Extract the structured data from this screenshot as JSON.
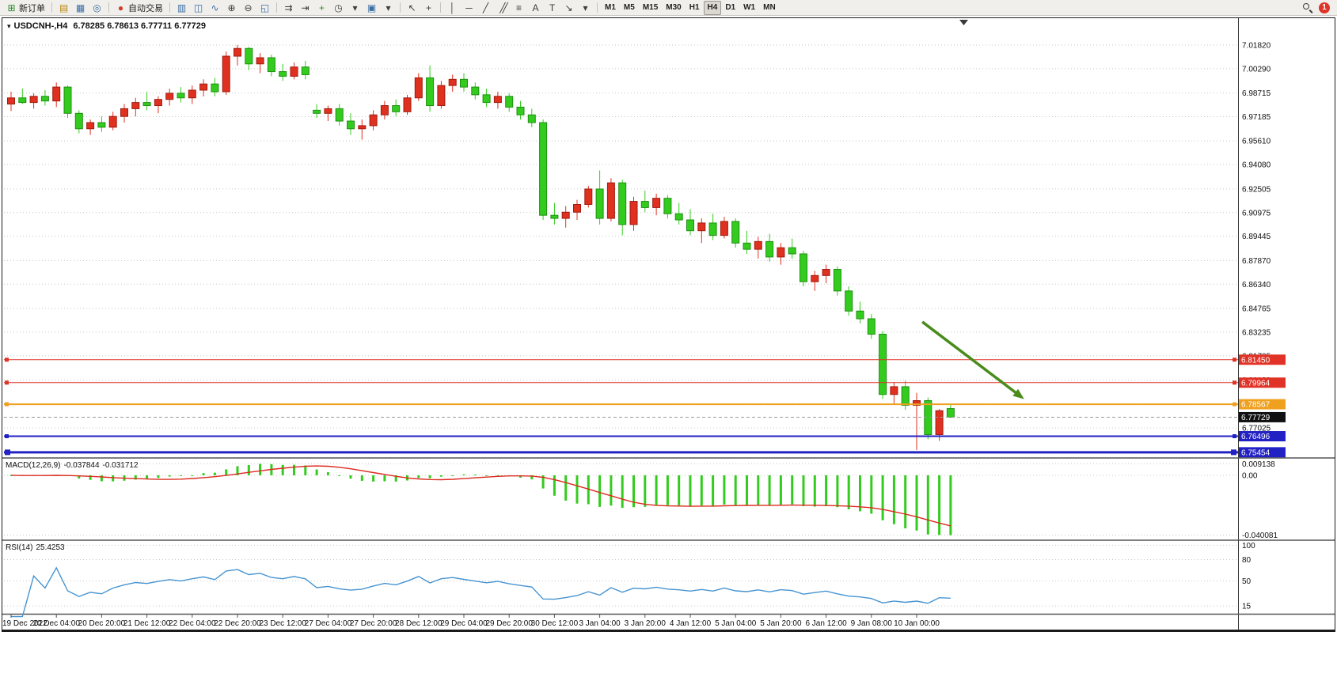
{
  "toolbar": {
    "notification_count": "1",
    "active_timeframe": "H4",
    "items": [
      {
        "name": "new-order-button",
        "icon": "new-order-icon",
        "glyph": "⊞",
        "color": "#2e8b2e",
        "label": "新订单"
      },
      {
        "type": "sep"
      },
      {
        "name": "market-watch-button",
        "icon": "market-watch-icon",
        "glyph": "▤",
        "color": "#b8860b"
      },
      {
        "name": "data-window-button",
        "icon": "data-window-icon",
        "glyph": "▦",
        "color": "#3a6ea5"
      },
      {
        "name": "navigator-button",
        "icon": "navigator-icon",
        "glyph": "◎",
        "color": "#3a6ea5"
      },
      {
        "type": "sep"
      },
      {
        "name": "algo-trading-button",
        "icon": "algo-trading-icon",
        "glyph": "●",
        "color": "#d43c2a",
        "label": "自动交易"
      },
      {
        "type": "sep"
      },
      {
        "name": "bar-chart-button",
        "icon": "bar-chart-icon",
        "glyph": "▥",
        "color": "#3a6ea5"
      },
      {
        "name": "candlestick-chart-button",
        "icon": "candlestick-chart-icon",
        "glyph": "◫",
        "color": "#3a6ea5"
      },
      {
        "name": "line-chart-button",
        "icon": "line-chart-icon",
        "glyph": "∿",
        "color": "#3a6ea5"
      },
      {
        "name": "zoom-in-button",
        "icon": "zoom-in-icon",
        "glyph": "⊕",
        "color": "#3d3d3d"
      },
      {
        "name": "zoom-out-button",
        "icon": "zoom-out-icon",
        "glyph": "⊖",
        "color": "#3d3d3d"
      },
      {
        "name": "tile-windows-button",
        "icon": "tile-windows-icon",
        "glyph": "◱",
        "color": "#3a6ea5"
      },
      {
        "type": "sep"
      },
      {
        "name": "auto-scroll-button",
        "icon": "auto-scroll-icon",
        "glyph": "⇉",
        "color": "#3d3d3d"
      },
      {
        "name": "chart-shift-button",
        "icon": "chart-shift-icon",
        "glyph": "⇥",
        "color": "#3d3d3d"
      },
      {
        "name": "indicators-button",
        "icon": "indicators-icon",
        "glyph": "+",
        "color": "#2e8b2e"
      },
      {
        "name": "periods-button",
        "icon": "clock-icon",
        "glyph": "◷",
        "color": "#3d3d3d"
      },
      {
        "name": "periods-dropdown",
        "icon": "chevron-down-icon",
        "glyph": "▾",
        "color": "#3d3d3d"
      },
      {
        "name": "templates-button",
        "icon": "templates-icon",
        "glyph": "▣",
        "color": "#3a6ea5"
      },
      {
        "name": "templates-dropdown",
        "icon": "chevron-down-icon",
        "glyph": "▾",
        "color": "#3d3d3d"
      },
      {
        "type": "sep"
      },
      {
        "name": "cursor-button",
        "icon": "cursor-icon",
        "glyph": "↖",
        "color": "#3d3d3d"
      },
      {
        "name": "crosshair-button",
        "icon": "crosshair-icon",
        "glyph": "+",
        "color": "#3d3d3d"
      },
      {
        "type": "sep"
      },
      {
        "name": "vertical-line-button",
        "icon": "vertical-line-icon",
        "glyph": "│",
        "color": "#3d3d3d"
      },
      {
        "name": "horizontal-line-button",
        "icon": "horizontal-line-icon",
        "glyph": "─",
        "color": "#3d3d3d"
      },
      {
        "name": "trendline-button",
        "icon": "trendline-icon",
        "glyph": "╱",
        "color": "#3d3d3d"
      },
      {
        "name": "channel-button",
        "icon": "channel-icon",
        "glyph": "╱╱",
        "color": "#3d3d3d"
      },
      {
        "name": "fibonacci-button",
        "icon": "fibonacci-icon",
        "glyph": "≡",
        "color": "#3d3d3d"
      },
      {
        "name": "text-tool-button",
        "icon": "text-tool-icon",
        "glyph": "A",
        "color": "#3d3d3d"
      },
      {
        "name": "label-tool-button",
        "icon": "label-tool-icon",
        "glyph": "T",
        "color": "#3d3d3d"
      },
      {
        "name": "arrows-tool-button",
        "icon": "arrow-tool-icon",
        "glyph": "↘",
        "color": "#3d3d3d"
      },
      {
        "name": "shapes-dropdown",
        "icon": "chevron-down-icon",
        "glyph": "▾",
        "color": "#3d3d3d"
      },
      {
        "type": "sep"
      },
      {
        "type": "tf",
        "name": "timeframe-m1-button",
        "label": "M1"
      },
      {
        "type": "tf",
        "name": "timeframe-m5-button",
        "label": "M5"
      },
      {
        "type": "tf",
        "name": "timeframe-m15-button",
        "label": "M15"
      },
      {
        "type": "tf",
        "name": "timeframe-m30-button",
        "label": "M30"
      },
      {
        "type": "tf",
        "name": "timeframe-h1-button",
        "label": "H1"
      },
      {
        "type": "tf",
        "name": "timeframe-h4-button",
        "label": "H4"
      },
      {
        "type": "tf",
        "name": "timeframe-d1-button",
        "label": "D1"
      },
      {
        "type": "tf",
        "name": "timeframe-w1-button",
        "label": "W1"
      },
      {
        "type": "tf",
        "name": "timeframe-mn-button",
        "label": "MN"
      }
    ]
  },
  "chart": {
    "symbol_period": "USDCNH-,H4",
    "ohlc": "6.78285 6.78613 6.77711 6.77729",
    "caret": "▾"
  },
  "macd": {
    "label": "MACD(12,26,9)",
    "value_main": "-0.037844",
    "value_signal": "-0.031712",
    "axis_max": "0.009138",
    "axis_zero": "0.00",
    "axis_min": "-0.040081"
  },
  "rsi": {
    "label": "RSI(14)",
    "value": "25.4253",
    "levels": [
      100,
      80,
      50,
      15
    ]
  },
  "chart_data": {
    "type": "candlestick",
    "symbol": "USDCNH-",
    "period": "H4",
    "bull_color": "#e0301f",
    "bull_stroke": "#9e1c10",
    "bear_color": "#33cc1e",
    "bear_stroke": "#1f8f12",
    "grid_color": "#c6c6c6",
    "macd_bar_color": "#33cc1e",
    "macd_signal_color": "#dd2a1e",
    "rsi_line_color": "#4694d1",
    "y_axis": {
      "price_top": 7.0361,
      "price_bottom": 6.7514,
      "labels": [
        7.0182,
        7.0029,
        6.98715,
        6.97185,
        6.9561,
        6.9408,
        6.92505,
        6.90975,
        6.89445,
        6.8787,
        6.8634,
        6.84765,
        6.83235,
        6.81705,
        6.8013,
        6.786,
        6.77025,
        6.75495
      ]
    },
    "x_label_every": 4,
    "x_labels": [
      "19 Dec 2022",
      "20 Dec 04:00",
      "20 Dec 20:00",
      "21 Dec 12:00",
      "22 Dec 04:00",
      "22 Dec 20:00",
      "23 Dec 12:00",
      "27 Dec 04:00",
      "27 Dec 20:00",
      "28 Dec 12:00",
      "29 Dec 04:00",
      "29 Dec 20:00",
      "30 Dec 12:00",
      "3 Jan 04:00",
      "3 Jan 20:00",
      "4 Jan 12:00",
      "5 Jan 04:00",
      "5 Jan 20:00",
      "6 Jan 12:00",
      "9 Jan 08:00",
      "10 Jan 00:00"
    ],
    "candles": [
      [
        6.98,
        6.988,
        6.9755,
        6.984
      ],
      [
        6.984,
        6.99,
        6.98,
        6.981
      ],
      [
        6.981,
        6.987,
        6.977,
        6.985
      ],
      [
        6.985,
        6.989,
        6.979,
        6.982
      ],
      [
        6.982,
        6.994,
        6.978,
        6.991
      ],
      [
        6.991,
        6.992,
        6.971,
        6.974
      ],
      [
        6.974,
        6.976,
        6.961,
        6.964
      ],
      [
        6.964,
        6.97,
        6.96,
        6.968
      ],
      [
        6.968,
        6.972,
        6.962,
        6.965
      ],
      [
        6.965,
        6.975,
        6.963,
        6.972
      ],
      [
        6.972,
        6.98,
        6.968,
        6.977
      ],
      [
        6.977,
        6.984,
        6.972,
        6.981
      ],
      [
        6.981,
        6.988,
        6.976,
        6.979
      ],
      [
        6.979,
        6.985,
        6.974,
        6.983
      ],
      [
        6.983,
        6.99,
        6.979,
        6.987
      ],
      [
        6.987,
        6.991,
        6.981,
        6.984
      ],
      [
        6.984,
        6.992,
        6.98,
        6.989
      ],
      [
        6.989,
        6.996,
        6.985,
        6.993
      ],
      [
        6.993,
        6.997,
        6.985,
        6.988
      ],
      [
        6.988,
        7.014,
        6.986,
        7.011
      ],
      [
        7.011,
        7.0182,
        7.005,
        7.016
      ],
      [
        7.016,
        7.017,
        7.002,
        7.006
      ],
      [
        7.006,
        7.013,
        7.0,
        7.01
      ],
      [
        7.01,
        7.012,
        6.998,
        7.001
      ],
      [
        7.001,
        7.006,
        6.995,
        6.998
      ],
      [
        6.998,
        7.007,
        6.996,
        7.004
      ],
      [
        7.004,
        7.008,
        6.996,
        6.999
      ],
      [
        6.976,
        6.98,
        6.971,
        6.974
      ],
      [
        6.974,
        6.979,
        6.969,
        6.977
      ],
      [
        6.977,
        6.98,
        6.966,
        6.969
      ],
      [
        6.969,
        6.974,
        6.96,
        6.964
      ],
      [
        6.964,
        6.97,
        6.957,
        6.966
      ],
      [
        6.966,
        6.976,
        6.963,
        6.973
      ],
      [
        6.973,
        6.982,
        6.97,
        6.979
      ],
      [
        6.979,
        6.983,
        6.972,
        6.975
      ],
      [
        6.975,
        6.986,
        6.973,
        6.984
      ],
      [
        6.984,
        7.0,
        6.982,
        6.997
      ],
      [
        6.997,
        7.005,
        6.975,
        6.979
      ],
      [
        6.979,
        6.995,
        6.977,
        6.992
      ],
      [
        6.992,
        6.999,
        6.988,
        6.996
      ],
      [
        6.996,
        7.0,
        6.988,
        6.991
      ],
      [
        6.991,
        6.994,
        6.983,
        6.986
      ],
      [
        6.986,
        6.99,
        6.978,
        6.981
      ],
      [
        6.981,
        6.988,
        6.977,
        6.985
      ],
      [
        6.985,
        6.987,
        6.975,
        6.978
      ],
      [
        6.978,
        6.982,
        6.97,
        6.973
      ],
      [
        6.973,
        6.977,
        6.965,
        6.968
      ],
      [
        6.968,
        6.97,
        6.905,
        6.908
      ],
      [
        6.908,
        6.916,
        6.902,
        6.906
      ],
      [
        6.906,
        6.914,
        6.9,
        6.91
      ],
      [
        6.91,
        6.918,
        6.905,
        6.915
      ],
      [
        6.915,
        6.927,
        6.913,
        6.925
      ],
      [
        6.925,
        6.937,
        6.902,
        6.906
      ],
      [
        6.906,
        6.932,
        6.904,
        6.929
      ],
      [
        6.929,
        6.931,
        6.895,
        6.902
      ],
      [
        6.902,
        6.92,
        6.898,
        6.917
      ],
      [
        6.917,
        6.924,
        6.91,
        6.913
      ],
      [
        6.913,
        6.922,
        6.908,
        6.919
      ],
      [
        6.919,
        6.921,
        6.906,
        6.909
      ],
      [
        6.909,
        6.916,
        6.902,
        6.905
      ],
      [
        6.905,
        6.912,
        6.895,
        6.898
      ],
      [
        6.898,
        6.906,
        6.89,
        6.903
      ],
      [
        6.903,
        6.909,
        6.892,
        6.895
      ],
      [
        6.895,
        6.907,
        6.893,
        6.904
      ],
      [
        6.904,
        6.906,
        6.887,
        6.89
      ],
      [
        6.89,
        6.898,
        6.883,
        6.886
      ],
      [
        6.886,
        6.894,
        6.88,
        6.891
      ],
      [
        6.891,
        6.896,
        6.878,
        6.881
      ],
      [
        6.881,
        6.89,
        6.876,
        6.887
      ],
      [
        6.887,
        6.893,
        6.88,
        6.883
      ],
      [
        6.883,
        6.885,
        6.862,
        6.865
      ],
      [
        6.865,
        6.872,
        6.859,
        6.869
      ],
      [
        6.869,
        6.876,
        6.864,
        6.873
      ],
      [
        6.873,
        6.875,
        6.856,
        6.859
      ],
      [
        6.859,
        6.862,
        6.843,
        6.846
      ],
      [
        6.846,
        6.852,
        6.838,
        6.841
      ],
      [
        6.841,
        6.844,
        6.828,
        6.831
      ],
      [
        6.831,
        6.833,
        6.789,
        6.792
      ],
      [
        6.792,
        6.8,
        6.786,
        6.797
      ],
      [
        6.797,
        6.801,
        6.782,
        6.785
      ],
      [
        6.785,
        6.793,
        6.756,
        6.788
      ],
      [
        6.788,
        6.79,
        6.763,
        6.766
      ],
      [
        6.766,
        6.7825,
        6.762,
        6.7815
      ],
      [
        6.78285,
        6.78613,
        6.77711,
        6.77729
      ]
    ],
    "hlines": [
      {
        "name": "resistance-line-1",
        "price": 6.8145,
        "color": "#e03226",
        "width": 1,
        "tag": "6.81450"
      },
      {
        "name": "resistance-line-2",
        "price": 6.79964,
        "color": "#e03226",
        "width": 1,
        "tag": "6.79964"
      },
      {
        "name": "pivot-line",
        "price": 6.78567,
        "color": "#efa01e",
        "width": 2,
        "tag": "6.78567"
      },
      {
        "name": "support-line-1",
        "price": 6.76496,
        "color": "#2222c4",
        "width": 2,
        "tag": "6.76496"
      },
      {
        "name": "support-line-2",
        "price": 6.75454,
        "color": "#2222c4",
        "width": 3,
        "tag": "6.75454"
      }
    ],
    "bid": {
      "price": 6.77729,
      "tag": "6.77729",
      "tag_color": "#111111"
    },
    "arrow": {
      "from_index": 80.5,
      "from_price": 6.839,
      "to_index": 89.5,
      "to_price": 6.789,
      "color": "#4a8c1c"
    }
  }
}
